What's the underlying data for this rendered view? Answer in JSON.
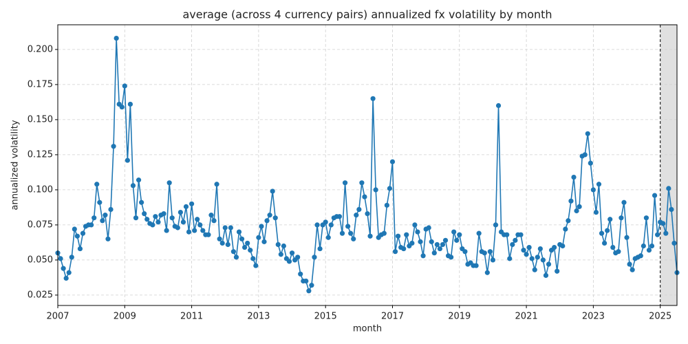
{
  "chart_data": {
    "type": "line",
    "title": "average (across 4 currency pairs) annualized fx volatility by month",
    "x_label": "month",
    "y_label": "annualized volatility",
    "color": "#1f77b4",
    "x": [
      "2007-01",
      "2007-02",
      "2007-03",
      "2007-04",
      "2007-05",
      "2007-06",
      "2007-07",
      "2007-08",
      "2007-09",
      "2007-10",
      "2007-11",
      "2007-12",
      "2008-01",
      "2008-02",
      "2008-03",
      "2008-04",
      "2008-05",
      "2008-06",
      "2008-07",
      "2008-08",
      "2008-09",
      "2008-10",
      "2008-11",
      "2008-12",
      "2009-01",
      "2009-02",
      "2009-03",
      "2009-04",
      "2009-05",
      "2009-06",
      "2009-07",
      "2009-08",
      "2009-09",
      "2009-10",
      "2009-11",
      "2009-12",
      "2010-01",
      "2010-02",
      "2010-03",
      "2010-04",
      "2010-05",
      "2010-06",
      "2010-07",
      "2010-08",
      "2010-09",
      "2010-10",
      "2010-11",
      "2010-12",
      "2011-01",
      "2011-02",
      "2011-03",
      "2011-04",
      "2011-05",
      "2011-06",
      "2011-07",
      "2011-08",
      "2011-09",
      "2011-10",
      "2011-11",
      "2011-12",
      "2012-01",
      "2012-02",
      "2012-03",
      "2012-04",
      "2012-05",
      "2012-06",
      "2012-07",
      "2012-08",
      "2012-09",
      "2012-10",
      "2012-11",
      "2012-12",
      "2013-01",
      "2013-02",
      "2013-03",
      "2013-04",
      "2013-05",
      "2013-06",
      "2013-07",
      "2013-08",
      "2013-09",
      "2013-10",
      "2013-11",
      "2013-12",
      "2014-01",
      "2014-02",
      "2014-03",
      "2014-04",
      "2014-05",
      "2014-06",
      "2014-07",
      "2014-08",
      "2014-09",
      "2014-10",
      "2014-11",
      "2014-12",
      "2015-01",
      "2015-02",
      "2015-03",
      "2015-04",
      "2015-05",
      "2015-06",
      "2015-07",
      "2015-08",
      "2015-09",
      "2015-10",
      "2015-11",
      "2015-12",
      "2016-01",
      "2016-02",
      "2016-03",
      "2016-04",
      "2016-05",
      "2016-06",
      "2016-07",
      "2016-08",
      "2016-09",
      "2016-10",
      "2016-11",
      "2016-12",
      "2017-01",
      "2017-02",
      "2017-03",
      "2017-04",
      "2017-05",
      "2017-06",
      "2017-07",
      "2017-08",
      "2017-09",
      "2017-10",
      "2017-11",
      "2017-12",
      "2018-01",
      "2018-02",
      "2018-03",
      "2018-04",
      "2018-05",
      "2018-06",
      "2018-07",
      "2018-08",
      "2018-09",
      "2018-10",
      "2018-11",
      "2018-12",
      "2019-01",
      "2019-02",
      "2019-03",
      "2019-04",
      "2019-05",
      "2019-06",
      "2019-07",
      "2019-08",
      "2019-09",
      "2019-10",
      "2019-11",
      "2019-12",
      "2020-01",
      "2020-02",
      "2020-03",
      "2020-04",
      "2020-05",
      "2020-06",
      "2020-07",
      "2020-08",
      "2020-09",
      "2020-10",
      "2020-11",
      "2020-12",
      "2021-01",
      "2021-02",
      "2021-03",
      "2021-04",
      "2021-05",
      "2021-06",
      "2021-07",
      "2021-08",
      "2021-09",
      "2021-10",
      "2021-11",
      "2021-12",
      "2022-01",
      "2022-02",
      "2022-03",
      "2022-04",
      "2022-05",
      "2022-06",
      "2022-07",
      "2022-08",
      "2022-09",
      "2022-10",
      "2022-11",
      "2022-12",
      "2023-01",
      "2023-02",
      "2023-03",
      "2023-04",
      "2023-05",
      "2023-06",
      "2023-07",
      "2023-08",
      "2023-09",
      "2023-10",
      "2023-11",
      "2023-12",
      "2024-01",
      "2024-02",
      "2024-03",
      "2024-04",
      "2024-05",
      "2024-06",
      "2024-07",
      "2024-08",
      "2024-09",
      "2024-10",
      "2024-11",
      "2024-12",
      "2025-01",
      "2025-02",
      "2025-03",
      "2025-04",
      "2025-05",
      "2025-06",
      "2025-07"
    ],
    "values": [
      0.055,
      0.051,
      0.044,
      0.037,
      0.041,
      0.052,
      0.072,
      0.067,
      0.058,
      0.069,
      0.074,
      0.075,
      0.075,
      0.08,
      0.104,
      0.091,
      0.078,
      0.082,
      0.065,
      0.086,
      0.131,
      0.208,
      0.161,
      0.159,
      0.174,
      0.121,
      0.161,
      0.103,
      0.08,
      0.107,
      0.091,
      0.083,
      0.079,
      0.076,
      0.075,
      0.081,
      0.077,
      0.082,
      0.083,
      0.071,
      0.105,
      0.08,
      0.074,
      0.073,
      0.084,
      0.077,
      0.088,
      0.07,
      0.09,
      0.071,
      0.079,
      0.075,
      0.071,
      0.068,
      0.068,
      0.082,
      0.078,
      0.104,
      0.065,
      0.062,
      0.073,
      0.061,
      0.073,
      0.056,
      0.052,
      0.07,
      0.065,
      0.059,
      0.062,
      0.057,
      0.051,
      0.046,
      0.066,
      0.074,
      0.063,
      0.078,
      0.082,
      0.099,
      0.08,
      0.061,
      0.054,
      0.06,
      0.051,
      0.049,
      0.055,
      0.05,
      0.052,
      0.04,
      0.035,
      0.035,
      0.028,
      0.032,
      0.052,
      0.075,
      0.058,
      0.075,
      0.077,
      0.066,
      0.075,
      0.08,
      0.081,
      0.081,
      0.069,
      0.105,
      0.074,
      0.069,
      0.065,
      0.082,
      0.086,
      0.105,
      0.095,
      0.083,
      0.067,
      0.165,
      0.1,
      0.066,
      0.068,
      0.069,
      0.089,
      0.101,
      0.12,
      0.056,
      0.067,
      0.059,
      0.058,
      0.068,
      0.06,
      0.062,
      0.075,
      0.07,
      0.063,
      0.053,
      0.072,
      0.073,
      0.063,
      0.055,
      0.061,
      0.058,
      0.061,
      0.064,
      0.053,
      0.052,
      0.07,
      0.064,
      0.068,
      0.058,
      0.056,
      0.047,
      0.048,
      0.046,
      0.046,
      0.069,
      0.056,
      0.055,
      0.041,
      0.056,
      0.05,
      0.075,
      0.16,
      0.07,
      0.068,
      0.068,
      0.051,
      0.061,
      0.064,
      0.068,
      0.068,
      0.057,
      0.054,
      0.059,
      0.051,
      0.043,
      0.052,
      0.058,
      0.05,
      0.039,
      0.047,
      0.057,
      0.059,
      0.042,
      0.061,
      0.06,
      0.072,
      0.078,
      0.092,
      0.109,
      0.085,
      0.088,
      0.124,
      0.125,
      0.14,
      0.119,
      0.1,
      0.084,
      0.104,
      0.069,
      0.062,
      0.071,
      0.079,
      0.059,
      0.055,
      0.056,
      0.08,
      0.091,
      0.066,
      0.047,
      0.043,
      0.051,
      0.052,
      0.053,
      0.06,
      0.08,
      0.057,
      0.06,
      0.096,
      0.068,
      0.077,
      0.076,
      0.069,
      0.101,
      0.086,
      0.062,
      0.041
    ],
    "xlim": [
      "2007-01",
      "2025-07"
    ],
    "xticks": [
      {
        "value": "2007-01",
        "label": "2007"
      },
      {
        "value": "2009-01",
        "label": "2009"
      },
      {
        "value": "2011-01",
        "label": "2011"
      },
      {
        "value": "2013-01",
        "label": "2013"
      },
      {
        "value": "2015-01",
        "label": "2015"
      },
      {
        "value": "2017-01",
        "label": "2017"
      },
      {
        "value": "2019-01",
        "label": "2019"
      },
      {
        "value": "2021-01",
        "label": "2021"
      },
      {
        "value": "2023-01",
        "label": "2023"
      },
      {
        "value": "2025-01",
        "label": "2025"
      }
    ],
    "ylim": [
      0.0176,
      0.2176
    ],
    "yticks": [
      0.025,
      {
        "value": 0.05,
        "label": "0.050"
      },
      0.075,
      {
        "value": 0.1,
        "label": "0.100"
      },
      0.125,
      {
        "value": 0.15,
        "label": "0.150"
      },
      0.175,
      {
        "value": 0.2,
        "label": "0.200"
      }
    ],
    "shaded_span": [
      "2025-01",
      "2025-07"
    ],
    "shade_color": "#e0e0e0",
    "grid": true
  }
}
